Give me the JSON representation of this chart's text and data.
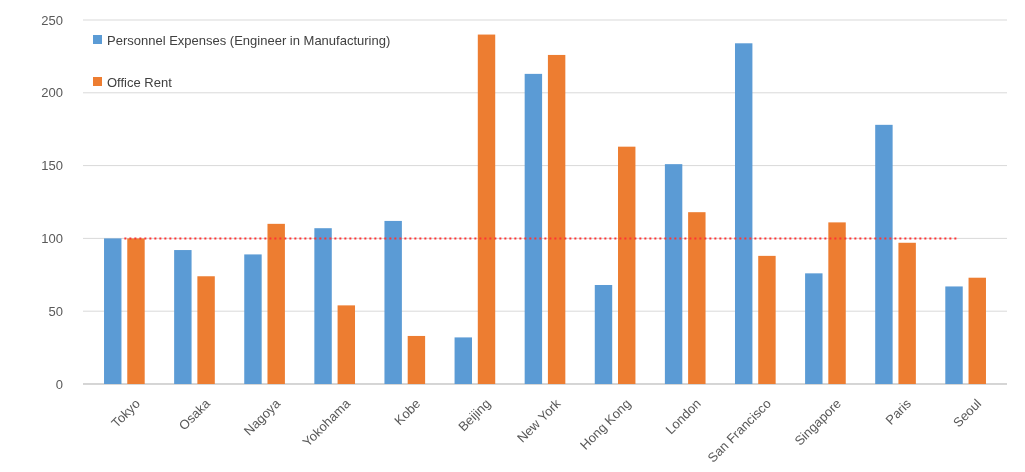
{
  "chart_data": {
    "type": "bar",
    "categories": [
      "Tokyo",
      "Osaka",
      "Nagoya",
      "Yokohama",
      "Kobe",
      "Beijing",
      "New York",
      "Hong Kong",
      "London",
      "San Francisco",
      "Singapore",
      "Paris",
      "Seoul"
    ],
    "series": [
      {
        "name": "Personnel Expenses (Engineer in Manufacturing)",
        "color": "#5b9bd5",
        "values": [
          100,
          92,
          89,
          107,
          112,
          32,
          213,
          68,
          151,
          234,
          76,
          178,
          67
        ]
      },
      {
        "name": "Office Rent",
        "color": "#ed7d31",
        "values": [
          100,
          74,
          110,
          54,
          33,
          240,
          226,
          163,
          118,
          88,
          111,
          97,
          73
        ]
      }
    ],
    "ylim": [
      0,
      250
    ],
    "yticks": [
      0,
      50,
      100,
      150,
      200,
      250
    ],
    "grid": "y",
    "legend": "top left",
    "ref_lines": [
      {
        "axis": "y",
        "value": 100,
        "color": "#ff3333",
        "line_style": "dotted"
      }
    ]
  }
}
